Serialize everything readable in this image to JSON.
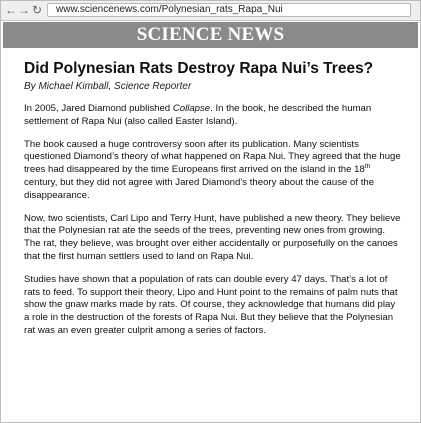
{
  "browser": {
    "back_glyph": "←",
    "forward_glyph": "→",
    "reload_glyph": "↻",
    "url": "www.sciencenews.com/Polynesian_rats_Rapa_Nui"
  },
  "site": {
    "name": "SCIENCE NEWS"
  },
  "article": {
    "headline": "Did Polynesian Rats Destroy Rapa Nui’s Trees?",
    "byline": "By Michael Kimball, Science Reporter",
    "p1": {
      "before": "In 2005, Jared Diamond published ",
      "book_title": "Collapse",
      "after": ". In the book, he described the human settlement of Rapa Nui (also called Easter Island)."
    },
    "p2": {
      "before": "The book caused a huge controversy soon after its publication. Many scientists questioned Diamond’s theory of what happened on Rapa Nui. They agreed that the huge trees had disappeared by the time Europeans first arrived on the island in the 18",
      "superscript": "th",
      "after": " century, but they did not agree with Jared Diamond’s theory about the cause of the disappearance."
    },
    "p3": "Now, two scientists, Carl Lipo and Terry Hunt, have published a new theory. They believe that the Polynesian rat ate the seeds of the trees, preventing new ones from growing. The rat, they believe, was brought over either accidentally or purposefully on the canoes that the first human settlers used to land on Rapa Nui.",
    "p4": "Studies have shown that a population of rats can double every 47 days. That’s a lot of rats to feed. To support their theory, Lipo and Hunt point to the remains of palm nuts that show the gnaw marks made by rats. Of course, they acknowledge that humans did play a role in the destruction of the forests of Rapa Nui. But they believe that the Polynesian rat was an even greater culprit among a series of factors."
  }
}
